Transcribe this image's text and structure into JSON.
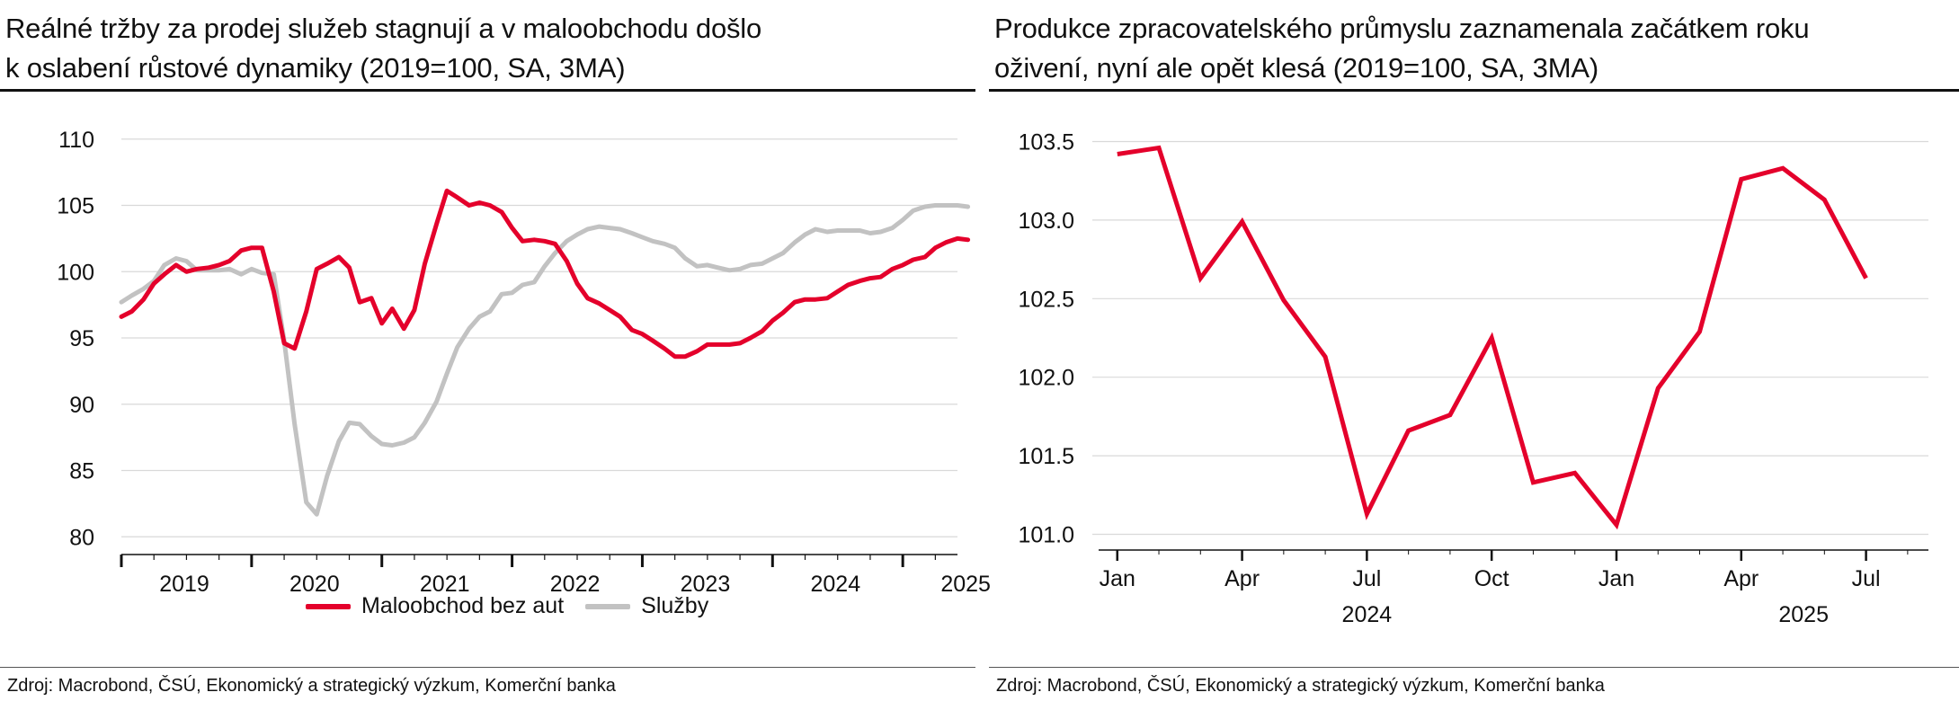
{
  "colors": {
    "retail": "#e4002b",
    "services": "#c2c2c2",
    "production": "#e4002b",
    "grid": "#d9d9d9",
    "axis": "#111111"
  },
  "left": {
    "title_line1": "Reálné tržby za prodej služeb stagnují a v maloobchodu došlo",
    "title_line2": "k oslabení růstové dynamiky (2019=100, SA, 3MA)",
    "source": "Zdroj: Macrobond, ČSÚ, Ekonomický a strategický výzkum, Komerční banka",
    "legend": {
      "retail": "Maloobchod bez aut",
      "services": "Služby"
    }
  },
  "right": {
    "title_line1": "Produkce zpracovatelského průmyslu zaznamenala začátkem roku",
    "title_line2": "oživení, nyní ale opět klesá (2019=100, SA, 3MA)",
    "source": "Zdroj: Macrobond, ČSÚ, Ekonomický a strategický výzkum, Komerční banka"
  },
  "chart_data": [
    {
      "type": "line",
      "x_unit": "year-index (2019.0 = January 2019)",
      "yticks": [
        110,
        105,
        100,
        95,
        90,
        85,
        80
      ],
      "ylim": [
        79,
        111
      ],
      "xlim": [
        2019.0,
        2025.42
      ],
      "x_tick_labels": [
        "2019",
        "2020",
        "2021",
        "2022",
        "2023",
        "2024",
        "2025"
      ],
      "grid": true,
      "legend_position": "bottom",
      "series": [
        {
          "name": "Maloobchod bez aut",
          "color": "#e4002b",
          "points": [
            [
              2019.0,
              96.6
            ],
            [
              2019.08,
              97.0
            ],
            [
              2019.17,
              97.9
            ],
            [
              2019.25,
              99.1
            ],
            [
              2019.33,
              99.8
            ],
            [
              2019.42,
              100.5
            ],
            [
              2019.5,
              100.0
            ],
            [
              2019.58,
              100.2
            ],
            [
              2019.67,
              100.3
            ],
            [
              2019.75,
              100.5
            ],
            [
              2019.83,
              100.8
            ],
            [
              2019.92,
              101.6
            ],
            [
              2020.0,
              101.8
            ],
            [
              2020.08,
              101.8
            ],
            [
              2020.17,
              98.5
            ],
            [
              2020.25,
              94.6
            ],
            [
              2020.33,
              94.2
            ],
            [
              2020.42,
              97.0
            ],
            [
              2020.5,
              100.2
            ],
            [
              2020.58,
              100.6
            ],
            [
              2020.67,
              101.1
            ],
            [
              2020.75,
              100.3
            ],
            [
              2020.83,
              97.7
            ],
            [
              2020.92,
              98.0
            ],
            [
              2021.0,
              96.1
            ],
            [
              2021.08,
              97.2
            ],
            [
              2021.17,
              95.7
            ],
            [
              2021.25,
              97.1
            ],
            [
              2021.33,
              100.6
            ],
            [
              2021.42,
              103.6
            ],
            [
              2021.5,
              106.1
            ],
            [
              2021.58,
              105.6
            ],
            [
              2021.67,
              105.0
            ],
            [
              2021.75,
              105.2
            ],
            [
              2021.83,
              105.0
            ],
            [
              2021.92,
              104.5
            ],
            [
              2022.0,
              103.3
            ],
            [
              2022.08,
              102.3
            ],
            [
              2022.17,
              102.4
            ],
            [
              2022.25,
              102.3
            ],
            [
              2022.33,
              102.1
            ],
            [
              2022.42,
              100.8
            ],
            [
              2022.5,
              99.1
            ],
            [
              2022.58,
              98.0
            ],
            [
              2022.67,
              97.6
            ],
            [
              2022.75,
              97.1
            ],
            [
              2022.83,
              96.6
            ],
            [
              2022.92,
              95.6
            ],
            [
              2023.0,
              95.3
            ],
            [
              2023.08,
              94.8
            ],
            [
              2023.17,
              94.2
            ],
            [
              2023.25,
              93.6
            ],
            [
              2023.33,
              93.6
            ],
            [
              2023.42,
              94.0
            ],
            [
              2023.5,
              94.5
            ],
            [
              2023.58,
              94.5
            ],
            [
              2023.67,
              94.5
            ],
            [
              2023.75,
              94.6
            ],
            [
              2023.83,
              95.0
            ],
            [
              2023.92,
              95.5
            ],
            [
              2024.0,
              96.3
            ],
            [
              2024.08,
              96.9
            ],
            [
              2024.17,
              97.7
            ],
            [
              2024.25,
              97.9
            ],
            [
              2024.33,
              97.9
            ],
            [
              2024.42,
              98.0
            ],
            [
              2024.5,
              98.5
            ],
            [
              2024.58,
              99.0
            ],
            [
              2024.67,
              99.3
            ],
            [
              2024.75,
              99.5
            ],
            [
              2024.83,
              99.6
            ],
            [
              2024.92,
              100.2
            ],
            [
              2025.0,
              100.5
            ],
            [
              2025.08,
              100.9
            ],
            [
              2025.17,
              101.1
            ],
            [
              2025.25,
              101.8
            ],
            [
              2025.33,
              102.2
            ],
            [
              2025.42,
              102.5
            ],
            [
              2025.5,
              102.4
            ]
          ]
        },
        {
          "name": "Služby",
          "color": "#c2c2c2",
          "points": [
            [
              2019.0,
              97.7
            ],
            [
              2019.08,
              98.2
            ],
            [
              2019.17,
              98.7
            ],
            [
              2019.25,
              99.3
            ],
            [
              2019.33,
              100.5
            ],
            [
              2019.42,
              101.0
            ],
            [
              2019.5,
              100.8
            ],
            [
              2019.58,
              100.1
            ],
            [
              2019.67,
              100.1
            ],
            [
              2019.75,
              100.1
            ],
            [
              2019.83,
              100.2
            ],
            [
              2019.92,
              99.8
            ],
            [
              2020.0,
              100.2
            ],
            [
              2020.08,
              99.9
            ],
            [
              2020.17,
              99.8
            ],
            [
              2020.25,
              94.8
            ],
            [
              2020.33,
              88.5
            ],
            [
              2020.42,
              82.6
            ],
            [
              2020.5,
              81.7
            ],
            [
              2020.58,
              84.6
            ],
            [
              2020.67,
              87.2
            ],
            [
              2020.75,
              88.6
            ],
            [
              2020.83,
              88.5
            ],
            [
              2020.92,
              87.6
            ],
            [
              2021.0,
              87.0
            ],
            [
              2021.08,
              86.9
            ],
            [
              2021.17,
              87.1
            ],
            [
              2021.25,
              87.5
            ],
            [
              2021.33,
              88.6
            ],
            [
              2021.42,
              90.2
            ],
            [
              2021.5,
              92.3
            ],
            [
              2021.58,
              94.3
            ],
            [
              2021.67,
              95.7
            ],
            [
              2021.75,
              96.6
            ],
            [
              2021.83,
              97.0
            ],
            [
              2021.92,
              98.3
            ],
            [
              2022.0,
              98.4
            ],
            [
              2022.08,
              99.0
            ],
            [
              2022.17,
              99.2
            ],
            [
              2022.25,
              100.4
            ],
            [
              2022.33,
              101.4
            ],
            [
              2022.42,
              102.3
            ],
            [
              2022.5,
              102.8
            ],
            [
              2022.58,
              103.2
            ],
            [
              2022.67,
              103.4
            ],
            [
              2022.75,
              103.3
            ],
            [
              2022.83,
              103.2
            ],
            [
              2022.92,
              102.9
            ],
            [
              2023.0,
              102.6
            ],
            [
              2023.08,
              102.3
            ],
            [
              2023.17,
              102.1
            ],
            [
              2023.25,
              101.8
            ],
            [
              2023.33,
              101.0
            ],
            [
              2023.42,
              100.4
            ],
            [
              2023.5,
              100.5
            ],
            [
              2023.58,
              100.3
            ],
            [
              2023.67,
              100.1
            ],
            [
              2023.75,
              100.2
            ],
            [
              2023.83,
              100.5
            ],
            [
              2023.92,
              100.6
            ],
            [
              2024.0,
              101.0
            ],
            [
              2024.08,
              101.4
            ],
            [
              2024.17,
              102.2
            ],
            [
              2024.25,
              102.8
            ],
            [
              2024.33,
              103.2
            ],
            [
              2024.42,
              103.0
            ],
            [
              2024.5,
              103.1
            ],
            [
              2024.58,
              103.1
            ],
            [
              2024.67,
              103.1
            ],
            [
              2024.75,
              102.9
            ],
            [
              2024.83,
              103.0
            ],
            [
              2024.92,
              103.3
            ],
            [
              2025.0,
              103.9
            ],
            [
              2025.08,
              104.6
            ],
            [
              2025.17,
              104.9
            ],
            [
              2025.25,
              105.0
            ],
            [
              2025.33,
              105.0
            ],
            [
              2025.42,
              105.0
            ],
            [
              2025.5,
              104.9
            ]
          ]
        }
      ]
    },
    {
      "type": "line",
      "x_unit": "month index (0 = Jan 2024)",
      "yticks": [
        103.5,
        103.0,
        102.5,
        102.0,
        101.5,
        101.0
      ],
      "ylim": [
        100.9,
        103.6
      ],
      "xlim": [
        -0.6,
        19.5
      ],
      "month_ticks": [
        0,
        3,
        6,
        9,
        12,
        15,
        18
      ],
      "month_tick_labels": [
        "Jan",
        "Apr",
        "Jul",
        "Oct",
        "Jan",
        "Apr",
        "Jul"
      ],
      "year_labels": [
        {
          "year": "2024",
          "at": 6
        },
        {
          "year": "2025",
          "at": 16.5
        }
      ],
      "grid": true,
      "series": [
        {
          "name": "",
          "color": "#e4002b",
          "values": [
            103.42,
            103.46,
            102.63,
            102.99,
            102.49,
            102.13,
            101.13,
            101.66,
            101.76,
            102.25,
            101.33,
            101.39,
            101.06,
            101.93,
            102.29,
            103.26,
            103.33,
            103.13,
            102.63
          ]
        }
      ]
    }
  ]
}
